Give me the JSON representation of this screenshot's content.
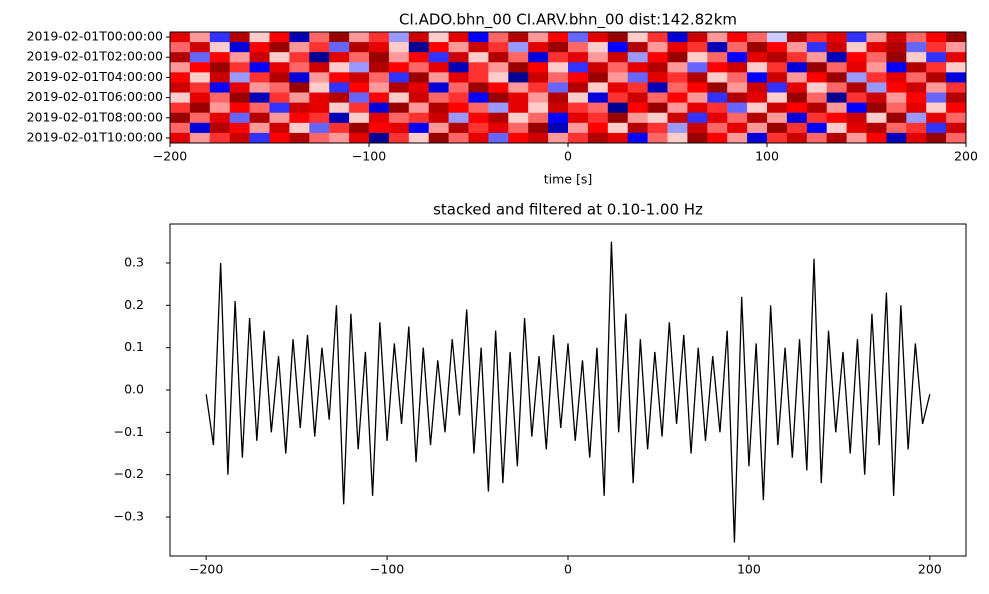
{
  "chart_data": [
    {
      "type": "heatmap",
      "title": "CI.ADO.bhn_00 CI.ARV.bhn_00  dist:142.82km",
      "xlabel": "time [s]",
      "cmap": "seismic",
      "categories": [
        "2019-02-01T00:00:00",
        null,
        "2019-02-01T02:00:00",
        null,
        "2019-02-01T04:00:00",
        null,
        "2019-02-01T06:00:00",
        null,
        "2019-02-01T08:00:00",
        null,
        "2019-02-01T10:00:00"
      ],
      "xlim": [
        -200,
        200
      ],
      "xticks": [
        {
          "value": -200,
          "label": "−200"
        },
        {
          "value": -100,
          "label": "−100"
        },
        0,
        100,
        200
      ],
      "z": [
        [
          0.6,
          0.2,
          -0.4,
          0.8,
          0.1,
          0.5,
          -0.7,
          0.3,
          0.9,
          0.2,
          0.4,
          -0.2,
          0.7,
          0.1,
          0.6,
          -0.5,
          0.3,
          0.8,
          0.2,
          0.5,
          -0.3,
          0.6,
          0.9,
          0.1,
          0.4,
          -0.6,
          0.7,
          0.2,
          0.5,
          0.3,
          -0.1,
          0.8,
          0.4,
          0.6,
          -0.4,
          0.2,
          0.7,
          0.3,
          0.5,
          0.9
        ],
        [
          0.3,
          0.7,
          0.1,
          -0.6,
          0.5,
          0.9,
          0.2,
          0.4,
          -0.3,
          0.8,
          0.6,
          0.1,
          -0.8,
          0.5,
          0.2,
          0.7,
          0.4,
          -0.2,
          0.6,
          0.9,
          0.3,
          0.1,
          -0.5,
          0.8,
          0.2,
          0.6,
          0.4,
          -0.7,
          0.3,
          0.9,
          0.5,
          0.2,
          -0.4,
          0.7,
          0.1,
          0.6,
          0.8,
          -0.3,
          0.4,
          0.2
        ],
        [
          0.8,
          -0.3,
          0.5,
          0.2,
          0.7,
          0.1,
          0.4,
          -0.8,
          0.6,
          0.3,
          0.9,
          0.2,
          0.5,
          -0.4,
          0.7,
          0.1,
          0.8,
          0.3,
          -0.6,
          0.4,
          0.6,
          0.2,
          0.7,
          -0.2,
          0.5,
          0.9,
          0.1,
          0.3,
          -0.5,
          0.6,
          0.8,
          0.4,
          0.2,
          -0.7,
          0.5,
          0.3,
          0.9,
          0.1,
          -0.4,
          0.6
        ],
        [
          0.2,
          0.5,
          0.9,
          0.4,
          -0.5,
          0.6,
          0.3,
          0.7,
          0.1,
          -0.2,
          0.8,
          0.5,
          0.3,
          0.6,
          -0.7,
          0.4,
          0.2,
          0.9,
          0.5,
          0.1,
          -0.4,
          0.7,
          0.3,
          0.6,
          0.8,
          0.2,
          -0.3,
          0.5,
          0.7,
          0.1,
          0.4,
          -0.6,
          0.9,
          0.3,
          0.6,
          0.2,
          -0.5,
          0.8,
          0.4,
          0.1
        ],
        [
          0.5,
          0.1,
          0.7,
          -0.2,
          0.4,
          0.8,
          -0.6,
          0.2,
          0.5,
          0.7,
          0.3,
          -0.4,
          0.9,
          0.2,
          0.6,
          0.4,
          0.1,
          -0.8,
          0.7,
          0.3,
          0.5,
          0.9,
          0.2,
          -0.3,
          0.6,
          0.4,
          0.8,
          0.1,
          0.3,
          -0.5,
          0.7,
          0.2,
          0.5,
          0.9,
          -0.2,
          0.4,
          0.6,
          0.3,
          0.8,
          -0.6
        ],
        [
          0.7,
          0.4,
          -0.5,
          0.6,
          0.2,
          0.3,
          0.9,
          0.1,
          -0.4,
          0.5,
          0.2,
          0.8,
          0.6,
          -0.6,
          0.3,
          0.9,
          0.5,
          0.2,
          0.4,
          -0.3,
          0.8,
          0.1,
          0.6,
          0.4,
          -0.7,
          0.3,
          0.5,
          0.9,
          0.2,
          0.7,
          -0.4,
          0.6,
          0.1,
          0.3,
          0.8,
          -0.2,
          0.5,
          0.7,
          0.2,
          0.4
        ],
        [
          0.1,
          0.6,
          0.3,
          0.9,
          -0.7,
          0.4,
          0.2,
          0.6,
          0.8,
          -0.3,
          0.5,
          0.1,
          0.7,
          0.3,
          0.4,
          -0.5,
          0.9,
          0.6,
          0.2,
          0.8,
          0.1,
          -0.6,
          0.4,
          0.7,
          0.3,
          0.5,
          0.2,
          -0.4,
          0.8,
          0.6,
          0.1,
          0.9,
          0.3,
          -0.8,
          0.4,
          0.7,
          0.2,
          0.5,
          -0.3,
          0.8
        ],
        [
          0.4,
          0.9,
          0.2,
          0.5,
          0.3,
          -0.4,
          0.7,
          0.6,
          0.1,
          0.4,
          -0.6,
          0.9,
          0.2,
          0.8,
          0.5,
          0.3,
          -0.2,
          0.6,
          0.1,
          0.7,
          0.4,
          0.3,
          -0.8,
          0.5,
          0.9,
          0.2,
          0.6,
          0.4,
          -0.3,
          0.1,
          0.7,
          0.5,
          0.8,
          0.2,
          -0.5,
          0.9,
          0.3,
          0.6,
          0.1,
          0.5
        ],
        [
          0.9,
          0.3,
          0.6,
          -0.3,
          0.8,
          0.2,
          0.5,
          0.4,
          -0.7,
          0.1,
          0.6,
          0.3,
          0.4,
          0.7,
          -0.2,
          0.5,
          0.8,
          0.1,
          0.3,
          -0.5,
          0.6,
          0.4,
          0.9,
          0.2,
          0.1,
          0.7,
          -0.4,
          0.6,
          0.3,
          0.8,
          0.2,
          -0.6,
          0.4,
          0.5,
          0.7,
          0.1,
          0.9,
          -0.2,
          0.6,
          0.3
        ],
        [
          0.3,
          -0.6,
          0.8,
          0.5,
          0.2,
          0.7,
          0.1,
          -0.3,
          0.4,
          0.9,
          0.5,
          0.6,
          -0.5,
          0.2,
          0.8,
          0.4,
          0.6,
          0.3,
          0.9,
          -0.7,
          0.2,
          0.5,
          0.1,
          0.8,
          0.4,
          -0.2,
          0.7,
          0.3,
          0.6,
          0.2,
          0.9,
          0.4,
          -0.5,
          0.1,
          0.6,
          0.8,
          0.3,
          0.4,
          -0.4,
          0.7
        ],
        [
          0.6,
          0.2,
          0.4,
          0.7,
          -0.4,
          0.5,
          0.8,
          0.3,
          0.2,
          0.6,
          -0.8,
          0.4,
          0.1,
          0.9,
          0.3,
          0.6,
          -0.3,
          0.5,
          0.7,
          0.2,
          0.4,
          0.8,
          0.6,
          -0.5,
          0.3,
          0.1,
          0.9,
          0.5,
          0.2,
          -0.6,
          0.4,
          0.7,
          0.3,
          0.8,
          0.2,
          0.5,
          -0.7,
          0.6,
          0.9,
          0.3
        ]
      ]
    },
    {
      "type": "line",
      "title": "stacked and filtered at 0.10-1.00 Hz",
      "color": "#000000",
      "x": [
        -200,
        -196,
        -192,
        -188,
        -184,
        -180,
        -176,
        -172,
        -168,
        -164,
        -160,
        -156,
        -152,
        -148,
        -144,
        -140,
        -136,
        -132,
        -128,
        -124,
        -120,
        -116,
        -112,
        -108,
        -104,
        -100,
        -96,
        -92,
        -88,
        -84,
        -80,
        -76,
        -72,
        -68,
        -64,
        -60,
        -56,
        -52,
        -48,
        -44,
        -40,
        -36,
        -32,
        -28,
        -24,
        -20,
        -16,
        -12,
        -8,
        -4,
        0,
        4,
        8,
        12,
        16,
        20,
        24,
        28,
        32,
        36,
        40,
        44,
        48,
        52,
        56,
        60,
        64,
        68,
        72,
        76,
        80,
        84,
        88,
        92,
        96,
        100,
        104,
        108,
        112,
        116,
        120,
        124,
        128,
        132,
        136,
        140,
        144,
        148,
        152,
        156,
        160,
        164,
        168,
        172,
        176,
        180,
        184,
        188,
        192,
        196,
        200
      ],
      "values": [
        -0.01,
        -0.13,
        0.3,
        -0.2,
        0.21,
        -0.16,
        0.17,
        -0.12,
        0.14,
        -0.1,
        0.08,
        -0.15,
        0.12,
        -0.09,
        0.13,
        -0.11,
        0.1,
        -0.07,
        0.2,
        -0.27,
        0.18,
        -0.14,
        0.09,
        -0.25,
        0.16,
        -0.12,
        0.11,
        -0.08,
        0.15,
        -0.17,
        0.1,
        -0.13,
        0.07,
        -0.1,
        0.12,
        -0.06,
        0.19,
        -0.15,
        0.1,
        -0.24,
        0.14,
        -0.22,
        0.09,
        -0.18,
        0.17,
        -0.11,
        0.08,
        -0.14,
        0.13,
        -0.09,
        0.11,
        -0.12,
        0.07,
        -0.16,
        0.1,
        -0.25,
        0.35,
        -0.1,
        0.18,
        -0.22,
        0.12,
        -0.14,
        0.09,
        -0.11,
        0.16,
        -0.08,
        0.13,
        -0.15,
        0.1,
        -0.12,
        0.08,
        -0.1,
        0.14,
        -0.36,
        0.22,
        -0.18,
        0.11,
        -0.26,
        0.2,
        -0.13,
        0.1,
        -0.16,
        0.12,
        -0.19,
        0.31,
        -0.22,
        0.14,
        -0.1,
        0.09,
        -0.15,
        0.12,
        -0.2,
        0.18,
        -0.13,
        0.23,
        -0.25,
        0.2,
        -0.14,
        0.11,
        -0.08,
        -0.01
      ],
      "xlim": [
        -220,
        220
      ],
      "xticks": [
        {
          "value": -200,
          "label": "−200"
        },
        {
          "value": -100,
          "label": "−100"
        },
        0,
        100,
        200
      ],
      "ylim": [
        -0.392,
        0.392
      ],
      "yticks": [
        {
          "value": -0.3,
          "label": "−0.3"
        },
        {
          "value": -0.2,
          "label": "−0.2"
        },
        {
          "value": -0.1,
          "label": "−0.1"
        },
        {
          "value": 0,
          "label": "0.0"
        },
        0.1,
        0.2,
        0.3
      ]
    }
  ]
}
